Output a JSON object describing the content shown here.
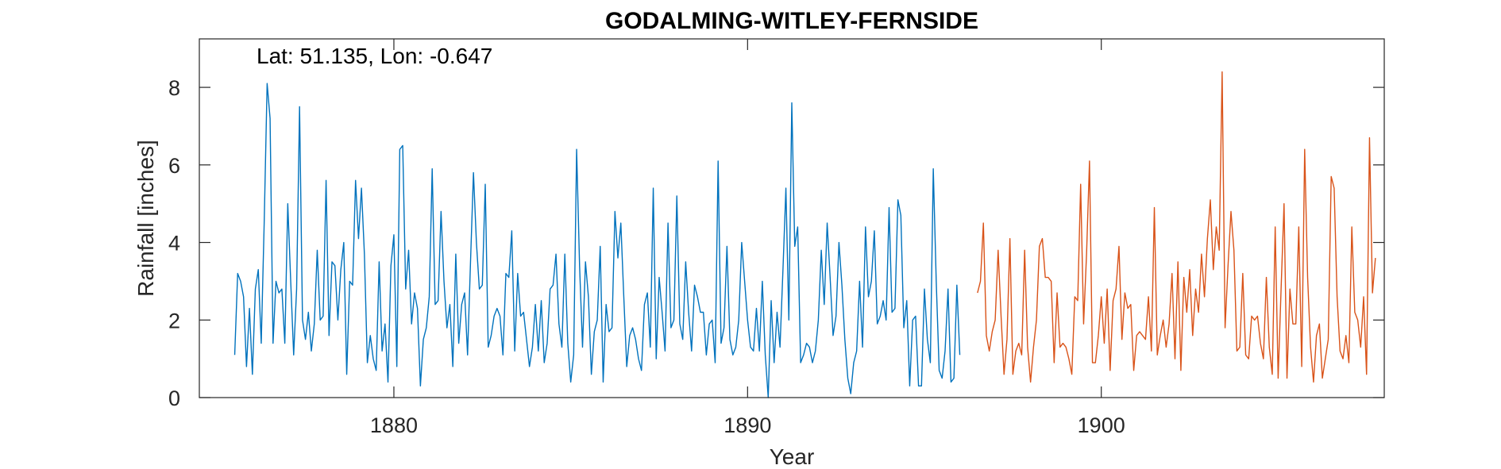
{
  "chart_data": {
    "type": "line",
    "title": "GODALMING-WITLEY-FERNSIDE",
    "annotation": "Lat: 51.135, Lon: -0.647",
    "xlabel": "Year",
    "ylabel": "Rainfall [inches]",
    "xlim": [
      1874.5,
      1908.0
    ],
    "ylim": [
      0,
      9.25
    ],
    "x_ticks": [
      1880,
      1890,
      1900
    ],
    "y_ticks": [
      0,
      2,
      4,
      6,
      8
    ],
    "grid": false,
    "series": [
      {
        "color": "#0072BD",
        "x_start": 1875.5,
        "x_step": 0.0833333,
        "values": [
          1.1,
          3.2,
          3.0,
          2.6,
          0.8,
          2.3,
          0.6,
          2.8,
          3.3,
          1.4,
          4.5,
          8.1,
          7.2,
          1.4,
          3.0,
          2.7,
          2.8,
          1.4,
          5.0,
          3.0,
          1.1,
          2.8,
          7.5,
          2.0,
          1.5,
          2.2,
          1.2,
          1.9,
          3.8,
          2.0,
          2.1,
          5.6,
          1.6,
          3.5,
          3.4,
          2.0,
          3.3,
          4.0,
          0.6,
          3.0,
          2.9,
          5.6,
          4.1,
          5.4,
          3.7,
          0.9,
          1.6,
          1.0,
          0.7,
          3.5,
          1.2,
          1.9,
          0.4,
          3.4,
          4.2,
          0.8,
          6.4,
          6.5,
          2.8,
          3.8,
          1.9,
          2.7,
          2.3,
          0.3,
          1.5,
          1.8,
          2.6,
          5.9,
          2.4,
          2.5,
          4.8,
          3.0,
          1.8,
          2.4,
          0.8,
          3.7,
          1.4,
          2.4,
          2.7,
          1.1,
          3.5,
          5.8,
          4.0,
          2.8,
          2.9,
          5.5,
          1.3,
          1.6,
          2.1,
          2.3,
          2.1,
          1.1,
          3.2,
          3.1,
          4.3,
          1.2,
          3.2,
          2.1,
          2.2,
          1.5,
          0.8,
          1.3,
          2.4,
          1.2,
          2.5,
          0.9,
          1.4,
          2.8,
          2.9,
          3.7,
          1.9,
          1.3,
          3.7,
          1.4,
          0.4,
          1.1,
          6.4,
          3.4,
          1.3,
          3.5,
          2.6,
          0.6,
          1.7,
          2.0,
          3.9,
          0.4,
          2.4,
          1.7,
          1.8,
          4.8,
          3.6,
          4.5,
          2.6,
          0.8,
          1.6,
          1.8,
          1.5,
          1.0,
          0.7,
          2.4,
          2.7,
          1.3,
          5.4,
          1.0,
          3.1,
          2.2,
          1.2,
          4.5,
          1.8,
          2.0,
          5.2,
          1.9,
          1.5,
          3.5,
          2.2,
          1.2,
          2.9,
          2.6,
          2.2,
          2.2,
          1.1,
          1.9,
          2.0,
          0.9,
          6.1,
          1.4,
          1.8,
          3.9,
          1.5,
          1.1,
          1.3,
          2.0,
          4.0,
          3.0,
          2.0,
          1.3,
          1.2,
          2.3,
          1.2,
          3.0,
          1.1,
          0.0,
          2.5,
          0.9,
          2.2,
          1.3,
          3.3,
          5.4,
          2.0,
          7.6,
          3.9,
          4.4,
          0.9,
          1.1,
          1.4,
          1.3,
          0.9,
          1.2,
          2.0,
          3.8,
          2.4,
          4.5,
          3.1,
          1.6,
          2.1,
          4.0,
          2.9,
          1.5,
          0.5,
          0.1,
          0.9,
          1.2,
          3.0,
          1.3,
          4.4,
          2.6,
          3.0,
          4.3,
          1.9,
          2.1,
          2.5,
          2.0,
          4.9,
          2.2,
          2.3,
          5.1,
          4.7,
          1.8,
          2.5,
          0.3,
          2.0,
          2.1,
          0.3,
          0.3,
          2.8,
          1.5,
          0.9,
          5.9,
          3.0,
          0.7,
          0.5,
          1.2,
          2.8,
          0.4,
          0.5,
          2.9,
          1.1
        ]
      },
      {
        "color": "#D95319",
        "x_start": 1896.5,
        "x_step": 0.0833333,
        "values": [
          2.7,
          3.0,
          4.5,
          1.6,
          1.2,
          1.7,
          2.0,
          3.8,
          2.1,
          0.6,
          1.5,
          4.1,
          0.6,
          1.2,
          1.4,
          1.1,
          3.8,
          1.3,
          0.4,
          1.3,
          2.0,
          3.9,
          4.1,
          3.1,
          3.1,
          3.0,
          0.9,
          2.7,
          1.3,
          1.4,
          1.3,
          1.0,
          0.6,
          2.6,
          2.5,
          5.5,
          1.9,
          3.7,
          6.1,
          0.9,
          0.9,
          1.6,
          2.6,
          1.4,
          2.8,
          0.7,
          2.5,
          2.8,
          3.9,
          1.5,
          2.7,
          2.3,
          2.4,
          0.7,
          1.6,
          1.7,
          1.6,
          1.5,
          2.6,
          1.2,
          4.9,
          1.1,
          1.6,
          2.0,
          1.3,
          1.9,
          3.2,
          1.0,
          3.5,
          0.7,
          3.1,
          2.2,
          3.3,
          1.6,
          2.8,
          2.2,
          3.7,
          2.6,
          4.1,
          5.1,
          3.3,
          4.4,
          3.8,
          8.4,
          1.8,
          3.4,
          4.8,
          3.8,
          1.2,
          1.3,
          3.2,
          1.1,
          1.0,
          2.1,
          2.0,
          2.1,
          1.4,
          1.0,
          3.1,
          1.3,
          0.6,
          4.4,
          0.5,
          2.8,
          5.0,
          0.5,
          2.8,
          1.9,
          1.9,
          4.4,
          0.8,
          6.4,
          3.1,
          1.3,
          0.4,
          1.6,
          1.9,
          0.5,
          1.0,
          1.5,
          5.7,
          5.4,
          2.6,
          1.2,
          1.0,
          1.6,
          0.9,
          4.4,
          2.2,
          2.0,
          1.3,
          2.6,
          0.6,
          6.7,
          2.7,
          3.6
        ]
      }
    ]
  }
}
